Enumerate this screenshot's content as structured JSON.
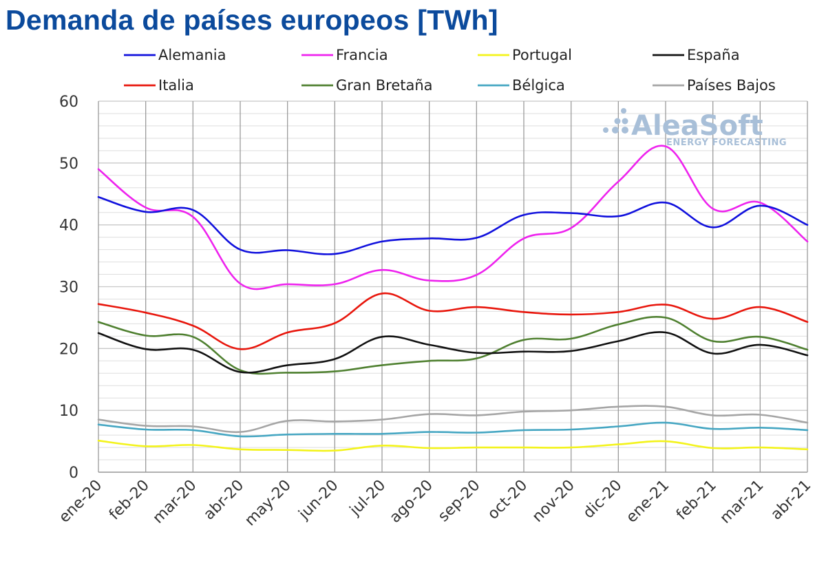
{
  "chart_data": {
    "type": "line",
    "title": "Demanda de países europeos [TWh]",
    "xlabel": "",
    "ylabel": "",
    "ylim": [
      0,
      60
    ],
    "yticks": [
      "0",
      "10",
      "20",
      "30",
      "40",
      "50",
      "60"
    ],
    "categories": [
      "ene-20",
      "feb-20",
      "mar-20",
      "abr-20",
      "may-20",
      "jun-20",
      "jul-20",
      "ago-20",
      "sep-20",
      "oct-20",
      "nov-20",
      "dic-20",
      "ene-21",
      "feb-21",
      "mar-21",
      "abr-21"
    ],
    "grid": true,
    "legend": "top",
    "series": [
      {
        "name": "Alemania",
        "color": "#1010dd",
        "values": [
          44.5,
          42.1,
          42.4,
          36.0,
          35.9,
          35.3,
          37.3,
          37.8,
          37.9,
          41.6,
          41.9,
          41.4,
          43.6,
          39.6,
          43.1,
          40.0
        ]
      },
      {
        "name": "Francia",
        "color": "#ee22ee",
        "values": [
          49.0,
          42.8,
          41.3,
          30.5,
          30.4,
          30.4,
          32.7,
          31.0,
          31.9,
          37.8,
          39.5,
          47.0,
          52.7,
          42.6,
          43.6,
          37.3
        ]
      },
      {
        "name": "Portugal",
        "color": "#f3f31a",
        "values": [
          5.1,
          4.2,
          4.4,
          3.7,
          3.6,
          3.5,
          4.3,
          3.9,
          4.0,
          4.0,
          4.0,
          4.5,
          5.0,
          3.9,
          4.0,
          3.7
        ]
      },
      {
        "name": "España",
        "color": "#111111",
        "values": [
          22.5,
          19.9,
          19.8,
          16.2,
          17.3,
          18.3,
          21.9,
          20.6,
          19.3,
          19.5,
          19.6,
          21.2,
          22.6,
          19.2,
          20.6,
          18.9
        ]
      },
      {
        "name": "Italia",
        "color": "#e8160c",
        "values": [
          27.2,
          25.8,
          23.7,
          19.9,
          22.6,
          24.1,
          28.9,
          26.1,
          26.7,
          25.9,
          25.5,
          25.9,
          27.1,
          24.8,
          26.7,
          24.3
        ]
      },
      {
        "name": "Gran Bretaña",
        "color": "#4f8030",
        "values": [
          24.3,
          22.1,
          21.9,
          16.5,
          16.1,
          16.3,
          17.3,
          18.0,
          18.4,
          21.4,
          21.6,
          23.9,
          25.0,
          21.2,
          21.9,
          19.8
        ]
      },
      {
        "name": "Bélgica",
        "color": "#45a6c2",
        "values": [
          7.7,
          6.9,
          6.8,
          5.8,
          6.1,
          6.2,
          6.2,
          6.5,
          6.4,
          6.8,
          6.9,
          7.4,
          8.0,
          7.0,
          7.2,
          6.8
        ]
      },
      {
        "name": "Países Bajos",
        "color": "#a5a5a5",
        "values": [
          8.5,
          7.5,
          7.4,
          6.5,
          8.3,
          8.2,
          8.5,
          9.4,
          9.2,
          9.8,
          10.0,
          10.6,
          10.6,
          9.2,
          9.3,
          8.0
        ]
      }
    ]
  },
  "watermark": {
    "name": "AleaSoft",
    "tagline": "ENERGY FORECASTING"
  }
}
